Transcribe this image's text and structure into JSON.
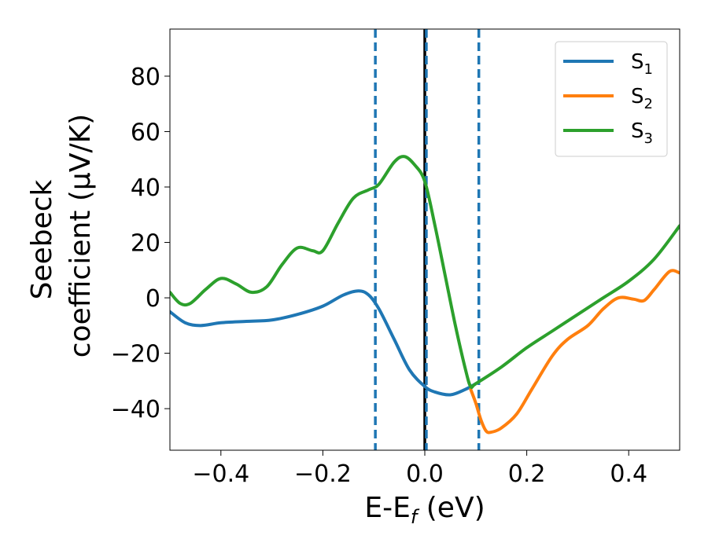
{
  "chart_data": {
    "type": "line",
    "xlabel": "E-E",
    "xlabel_sub": "f",
    "xlabel_unit": " (eV)",
    "ylabel_line1": "Seebeck",
    "ylabel_line2": "coefficient  (μV/K)",
    "xlim": [
      -0.5,
      0.5
    ],
    "ylim": [
      -55,
      97
    ],
    "xticks": [
      -0.4,
      -0.2,
      0.0,
      0.2,
      0.4
    ],
    "xtick_labels": [
      "−0.4",
      "−0.2",
      "0.0",
      "0.2",
      "0.4"
    ],
    "yticks": [
      -40,
      -20,
      0,
      20,
      40,
      60,
      80
    ],
    "ytick_labels": [
      "−40",
      "−20",
      "0",
      "20",
      "40",
      "60",
      "80"
    ],
    "grid": false,
    "legend_position": "top-right",
    "vlines": [
      {
        "x": -0.097,
        "style": "dashed",
        "color": "#1f77b4"
      },
      {
        "x": 0.0,
        "style": "solid",
        "color": "#000000"
      },
      {
        "x": 0.003,
        "style": "dashed",
        "color": "#1f77b4"
      },
      {
        "x": 0.106,
        "style": "dashed",
        "color": "#1f77b4"
      }
    ],
    "series": [
      {
        "name": "S",
        "sub": "1",
        "color": "#1f77b4",
        "x": [
          -0.5,
          -0.47,
          -0.44,
          -0.4,
          -0.35,
          -0.3,
          -0.25,
          -0.2,
          -0.16,
          -0.13,
          -0.11,
          -0.09,
          -0.06,
          -0.03,
          0.0,
          0.02,
          0.05,
          0.08,
          0.1
        ],
        "y": [
          -5,
          -9,
          -10,
          -9,
          -8.5,
          -8,
          -6,
          -3,
          1,
          2.5,
          1,
          -4,
          -15,
          -26,
          -32,
          -34,
          -35,
          -33,
          -31
        ]
      },
      {
        "name": "S",
        "sub": "2",
        "color": "#ff7f0e",
        "x": [
          0.09,
          0.1,
          0.11,
          0.12,
          0.13,
          0.15,
          0.18,
          0.21,
          0.25,
          0.28,
          0.32,
          0.35,
          0.38,
          0.41,
          0.43,
          0.45,
          0.48,
          0.5
        ],
        "y": [
          -33,
          -38,
          -44,
          -48,
          -48.5,
          -47,
          -42,
          -33,
          -21,
          -15,
          -10,
          -4,
          0,
          -0.5,
          -1,
          3,
          9.5,
          9
        ]
      },
      {
        "name": "S",
        "sub": "3",
        "color": "#2ca02c",
        "x": [
          -0.5,
          -0.48,
          -0.46,
          -0.43,
          -0.4,
          -0.37,
          -0.34,
          -0.31,
          -0.28,
          -0.25,
          -0.22,
          -0.2,
          -0.17,
          -0.14,
          -0.11,
          -0.09,
          -0.06,
          -0.04,
          -0.02,
          0.0,
          0.02,
          0.04,
          0.06,
          0.08,
          0.09,
          0.1,
          0.15,
          0.2,
          0.25,
          0.3,
          0.35,
          0.4,
          0.45,
          0.5
        ],
        "y": [
          2,
          -2,
          -2,
          3,
          7,
          5,
          2,
          4,
          12,
          18,
          17,
          17,
          27,
          36,
          39,
          41,
          49,
          51,
          48,
          42,
          26,
          8,
          -10,
          -26,
          -32,
          -31,
          -25,
          -18,
          -12,
          -6,
          0,
          6,
          14,
          26
        ]
      }
    ]
  }
}
